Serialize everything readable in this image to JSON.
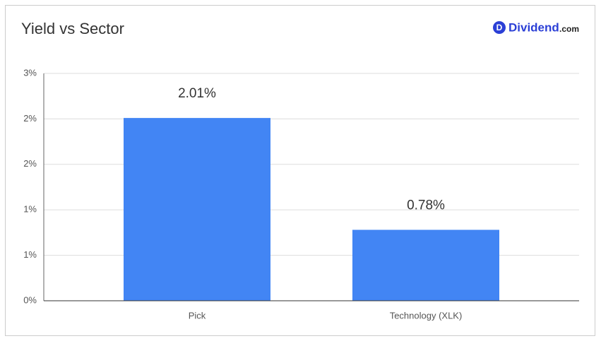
{
  "chart_data": {
    "type": "bar",
    "title": "Yield vs Sector",
    "categories": [
      "Pick",
      "Technology (XLK)"
    ],
    "values": [
      2.01,
      0.78
    ],
    "value_labels": [
      "2.01%",
      "0.78%"
    ],
    "color": "#4285f4",
    "ylim": [
      0,
      2.5
    ],
    "yticks": [
      {
        "value": 0,
        "label": "0%"
      },
      {
        "value": 0.5,
        "label": "1%"
      },
      {
        "value": 1,
        "label": "1%"
      },
      {
        "value": 1.5,
        "label": "2%"
      },
      {
        "value": 2,
        "label": "2%"
      },
      {
        "value": 2.5,
        "label": "3%"
      }
    ],
    "grid": true
  },
  "logo": {
    "icon": "D",
    "name": "Dividend",
    "domain": ".com"
  }
}
